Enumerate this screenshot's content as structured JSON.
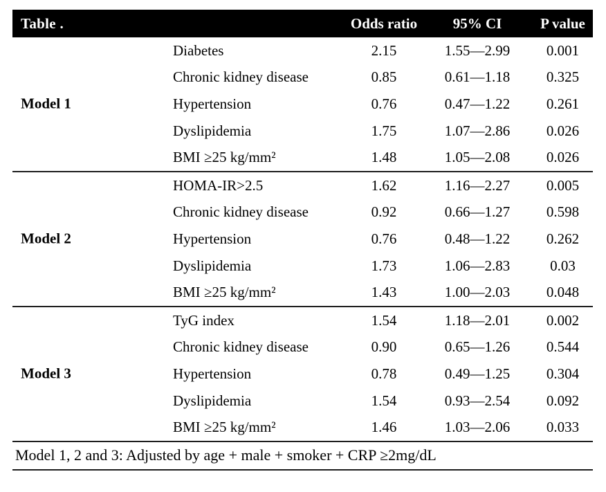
{
  "meta": {
    "background": "#ffffff",
    "header_bg": "#000000",
    "header_text_color": "#ffffff",
    "rule_color": "#1d1d1d"
  },
  "header": {
    "title": "Table .",
    "columns": [
      "Odds ratio",
      "95% CI",
      "P value"
    ]
  },
  "sections": [
    {
      "model": "Model 1",
      "rows": [
        {
          "variable": "Diabetes",
          "odds_ratio": "2.15",
          "ci": "1.55—2.99",
          "p": "0.001"
        },
        {
          "variable": "Chronic kidney disease",
          "odds_ratio": "0.85",
          "ci": "0.61—1.18",
          "p": "0.325"
        },
        {
          "variable": "Hypertension",
          "odds_ratio": "0.76",
          "ci": "0.47—1.22",
          "p": "0.261"
        },
        {
          "variable": "Dyslipidemia",
          "odds_ratio": "1.75",
          "ci": "1.07—2.86",
          "p": "0.026"
        },
        {
          "variable": "BMI ≥25 kg/mm²",
          "odds_ratio": "1.48",
          "ci": "1.05—2.08",
          "p": "0.026"
        }
      ]
    },
    {
      "model": "Model 2",
      "rows": [
        {
          "variable": "HOMA-IR>2.5",
          "odds_ratio": "1.62",
          "ci": "1.16—2.27",
          "p": "0.005"
        },
        {
          "variable": "Chronic kidney disease",
          "odds_ratio": "0.92",
          "ci": "0.66—1.27",
          "p": "0.598"
        },
        {
          "variable": "Hypertension",
          "odds_ratio": "0.76",
          "ci": "0.48—1.22",
          "p": "0.262"
        },
        {
          "variable": "Dyslipidemia",
          "odds_ratio": "1.73",
          "ci": "1.06—2.83",
          "p": "0.03"
        },
        {
          "variable": "BMI ≥25 kg/mm²",
          "odds_ratio": "1.43",
          "ci": "1.00—2.03",
          "p": "0.048"
        }
      ]
    },
    {
      "model": "Model 3",
      "rows": [
        {
          "variable": "TyG index",
          "odds_ratio": "1.54",
          "ci": "1.18—2.01",
          "p": "0.002"
        },
        {
          "variable": "Chronic kidney disease",
          "odds_ratio": "0.90",
          "ci": "0.65—1.26",
          "p": "0.544"
        },
        {
          "variable": "Hypertension",
          "odds_ratio": "0.78",
          "ci": "0.49—1.25",
          "p": "0.304"
        },
        {
          "variable": "Dyslipidemia",
          "odds_ratio": "1.54",
          "ci": "0.93—2.54",
          "p": "0.092"
        },
        {
          "variable": "BMI ≥25 kg/mm²",
          "odds_ratio": "1.46",
          "ci": "1.03—2.06",
          "p": "0.033"
        }
      ]
    }
  ],
  "footnote": "Model 1, 2 and 3: Adjusted by age + male + smoker + CRP ≥2mg/dL"
}
